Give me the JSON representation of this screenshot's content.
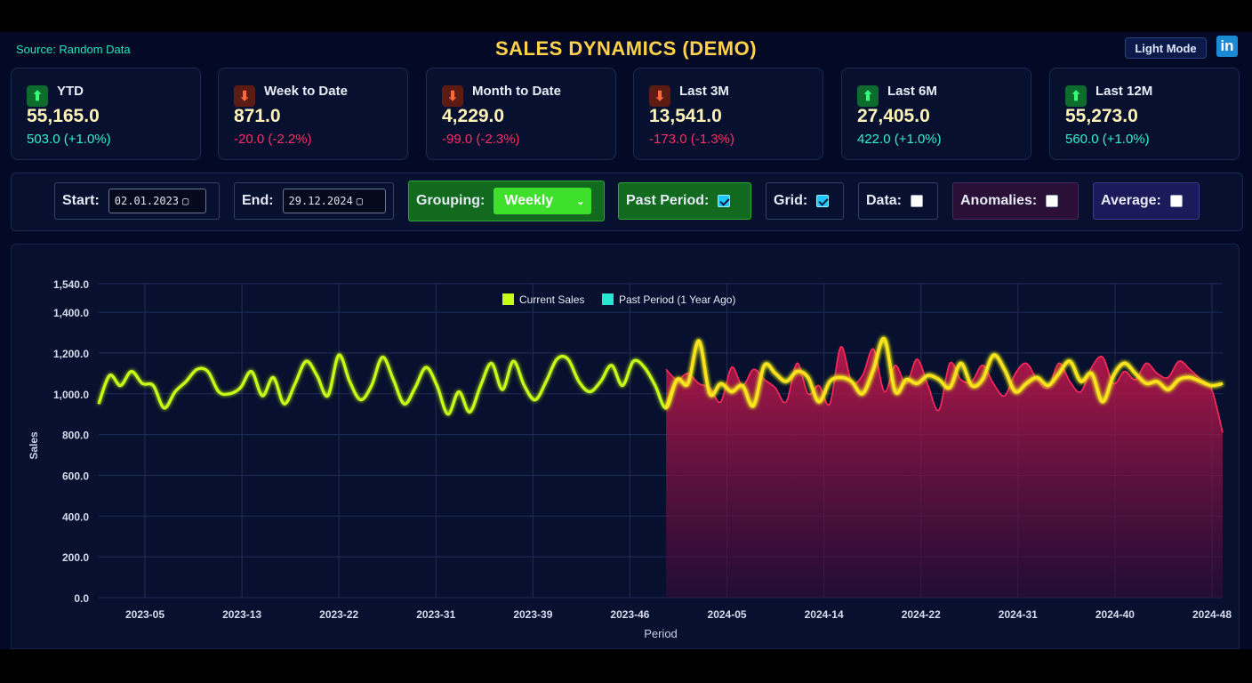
{
  "header": {
    "source": "Source: Random Data",
    "title": "SALES DYNAMICS (DEMO)",
    "light_mode_label": "Light Mode",
    "linkedin_icon": "in"
  },
  "colors": {
    "current": "#c8ff17",
    "past": "#ff2a5a",
    "positive": "#2ef2d2",
    "negative": "#ff2e63",
    "title": "#ffd24a",
    "grouping": "#3ee02c"
  },
  "kpis": [
    {
      "label": "YTD",
      "value": "55,165.0",
      "change": "503.0 (+1.0%)",
      "trend": "up",
      "icon": "arrow-up-icon"
    },
    {
      "label": "Week to Date",
      "value": "871.0",
      "change": "-20.0 (-2.2%)",
      "trend": "down",
      "icon": "arrow-down-icon"
    },
    {
      "label": "Month to Date",
      "value": "4,229.0",
      "change": "-99.0 (-2.3%)",
      "trend": "down",
      "icon": "arrow-down-icon"
    },
    {
      "label": "Last 3M",
      "value": "13,541.0",
      "change": "-173.0 (-1.3%)",
      "trend": "down",
      "icon": "arrow-down-icon"
    },
    {
      "label": "Last 6M",
      "value": "27,405.0",
      "change": "422.0 (+1.0%)",
      "trend": "up",
      "icon": "arrow-up-icon"
    },
    {
      "label": "Last 12M",
      "value": "55,273.0",
      "change": "560.0 (+1.0%)",
      "trend": "up",
      "icon": "arrow-up-icon"
    }
  ],
  "controls": {
    "start_label": "Start:",
    "start_value": "02.01.2023",
    "end_label": "End:",
    "end_value": "29.12.2024",
    "grouping_label": "Grouping:",
    "grouping_value": "Weekly",
    "past_period_label": "Past Period:",
    "past_period_checked": true,
    "grid_label": "Grid:",
    "grid_checked": true,
    "data_label": "Data:",
    "data_checked": false,
    "anomalies_label": "Anomalies:",
    "anomalies_checked": false,
    "average_label": "Average:",
    "average_checked": false
  },
  "chart_data": {
    "type": "line",
    "xlabel": "Period",
    "ylabel": "Sales",
    "ylim": [
      0,
      1540
    ],
    "grid": true,
    "legend_position": "top-center",
    "y_tick_labels": [
      "0.0",
      "200.0",
      "400.0",
      "600.0",
      "800.0",
      "1,000.0",
      "1,200.0",
      "1,400.0",
      "1,540.0"
    ],
    "x_tick_labels": [
      "2023-05",
      "2023-13",
      "2023-22",
      "2023-31",
      "2023-39",
      "2023-46",
      "2024-05",
      "2024-14",
      "2024-22",
      "2024-31",
      "2024-40",
      "2024-48"
    ],
    "series": [
      {
        "name": "Current Sales",
        "values": [
          950,
          1090,
          1040,
          1110,
          1050,
          1040,
          930,
          1010,
          1060,
          1120,
          1110,
          1010,
          1000,
          1030,
          1110,
          990,
          1080,
          950,
          1050,
          1160,
          1090,
          990,
          1190,
          1060,
          970,
          1040,
          1180,
          1070,
          950,
          1030,
          1130,
          1040,
          900,
          1010,
          910,
          1040,
          1150,
          1020,
          1160,
          1040,
          970,
          1060,
          1170,
          1170,
          1060,
          1010,
          1060,
          1140,
          1040,
          1160,
          1130,
          1040,
          930,
          1070,
          1050,
          1260,
          1000,
          1050,
          1010,
          1040,
          940,
          1140,
          1100,
          1060,
          1110,
          1080,
          960,
          1060,
          1080,
          1060,
          1000,
          1120,
          1270,
          1010,
          1070,
          1050,
          1090,
          1070,
          1030,
          1150,
          1040,
          1070,
          1190,
          1120,
          1010,
          1050,
          1080,
          1040,
          1100,
          1160,
          1060,
          1100,
          960,
          1090,
          1150,
          1100,
          1050,
          1060,
          1020,
          1070,
          1080,
          1060,
          1040,
          1050
        ]
      },
      {
        "name": "Past Period (1 Year Ago)",
        "x_start_index": 52,
        "values": [
          1120,
          1070,
          1100,
          1050,
          1030,
          960,
          1130,
          1040,
          1120,
          1070,
          1030,
          960,
          1150,
          1000,
          1040,
          950,
          1230,
          1060,
          1090,
          1220,
          1010,
          1140,
          1050,
          1170,
          1040,
          920,
          1150,
          1070,
          1060,
          1140,
          1050,
          990,
          1100,
          1150,
          1070,
          1030,
          1150,
          1060,
          1010,
          1130,
          1180,
          1050,
          1110,
          1070,
          1150,
          1100,
          1080,
          1160,
          1120,
          1070,
          1020,
          810
        ]
      }
    ]
  }
}
